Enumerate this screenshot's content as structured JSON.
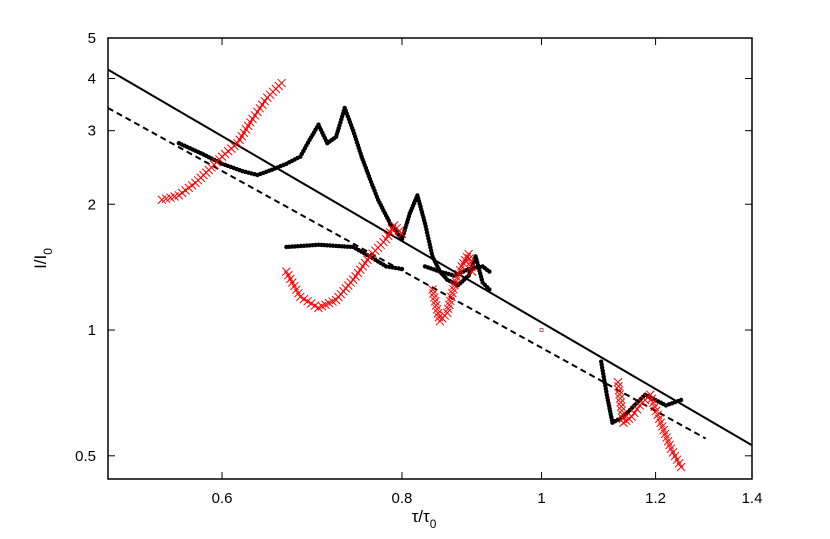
{
  "chart_data": {
    "type": "scatter",
    "x_scale": "log",
    "y_scale": "log",
    "xlim": [
      0.5,
      1.4
    ],
    "ylim": [
      0.44,
      5
    ],
    "xlabel": {
      "main": "τ/τ",
      "sub": "0"
    },
    "ylabel": {
      "main": "I/I",
      "sub": "0"
    },
    "x_ticks": [
      {
        "value": 0.6,
        "label": "0.6"
      },
      {
        "value": 0.8,
        "label": "0.8"
      },
      {
        "value": 1.0,
        "label": "1"
      },
      {
        "value": 1.2,
        "label": "1.2"
      },
      {
        "value": 1.4,
        "label": "1.4"
      }
    ],
    "y_ticks": [
      {
        "value": 0.5,
        "label": "0.5"
      },
      {
        "value": 1,
        "label": "1"
      },
      {
        "value": 2,
        "label": "2"
      },
      {
        "value": 3,
        "label": "3"
      },
      {
        "value": 4,
        "label": "4"
      },
      {
        "value": 5,
        "label": "5"
      }
    ],
    "grid": false,
    "lines": [
      {
        "style": "solid",
        "color": "#000000",
        "points": [
          [
            0.5,
            4.2
          ],
          [
            1.4,
            0.53
          ]
        ]
      },
      {
        "style": "dashed",
        "color": "#000000",
        "points": [
          [
            0.5,
            3.4
          ],
          [
            1.3,
            0.55
          ]
        ]
      }
    ],
    "series": [
      {
        "marker": "dot",
        "color": "#000000",
        "paths": [
          [
            [
              0.56,
              2.8
            ],
            [
              0.58,
              2.65
            ],
            [
              0.6,
              2.5
            ],
            [
              0.62,
              2.4
            ],
            [
              0.635,
              2.35
            ],
            [
              0.65,
              2.42
            ],
            [
              0.665,
              2.5
            ],
            [
              0.68,
              2.6
            ],
            [
              0.69,
              2.85
            ],
            [
              0.7,
              3.1
            ],
            [
              0.71,
              2.8
            ],
            [
              0.72,
              2.9
            ],
            [
              0.73,
              3.4
            ],
            [
              0.74,
              3.0
            ],
            [
              0.75,
              2.6
            ],
            [
              0.76,
              2.3
            ],
            [
              0.77,
              2.05
            ],
            [
              0.785,
              1.8
            ],
            [
              0.8,
              1.65
            ],
            [
              0.81,
              1.9
            ],
            [
              0.82,
              2.1
            ],
            [
              0.83,
              1.8
            ],
            [
              0.84,
              1.5
            ],
            [
              0.85,
              1.38
            ],
            [
              0.86,
              1.32
            ],
            [
              0.875,
              1.28
            ],
            [
              0.89,
              1.35
            ],
            [
              0.9,
              1.5
            ],
            [
              0.91,
              1.3
            ],
            [
              0.92,
              1.25
            ]
          ],
          [
            [
              0.665,
              1.58
            ],
            [
              0.7,
              1.6
            ],
            [
              0.74,
              1.58
            ],
            [
              0.76,
              1.5
            ],
            [
              0.78,
              1.42
            ],
            [
              0.8,
              1.4
            ]
          ],
          [
            [
              0.83,
              1.42
            ],
            [
              0.85,
              1.38
            ],
            [
              0.87,
              1.35
            ],
            [
              0.89,
              1.4
            ],
            [
              0.91,
              1.42
            ],
            [
              0.92,
              1.38
            ]
          ],
          [
            [
              1.1,
              0.84
            ],
            [
              1.11,
              0.7
            ],
            [
              1.12,
              0.6
            ],
            [
              1.14,
              0.62
            ],
            [
              1.16,
              0.66
            ],
            [
              1.18,
              0.7
            ],
            [
              1.2,
              0.68
            ],
            [
              1.22,
              0.66
            ],
            [
              1.25,
              0.68
            ]
          ]
        ]
      },
      {
        "marker": "x",
        "color": "#ff0000",
        "paths": [
          [
            [
              0.545,
              2.05
            ],
            [
              0.56,
              2.1
            ],
            [
              0.575,
              2.25
            ],
            [
              0.59,
              2.45
            ],
            [
              0.6,
              2.6
            ],
            [
              0.615,
              2.8
            ],
            [
              0.63,
              3.2
            ],
            [
              0.645,
              3.6
            ],
            [
              0.66,
              3.9
            ]
          ],
          [
            [
              0.665,
              1.38
            ],
            [
              0.68,
              1.2
            ],
            [
              0.7,
              1.13
            ],
            [
              0.72,
              1.18
            ],
            [
              0.74,
              1.32
            ],
            [
              0.76,
              1.5
            ],
            [
              0.78,
              1.65
            ],
            [
              0.79,
              1.78
            ],
            [
              0.8,
              1.7
            ]
          ],
          [
            [
              0.84,
              1.25
            ],
            [
              0.85,
              1.05
            ],
            [
              0.86,
              1.1
            ],
            [
              0.87,
              1.28
            ],
            [
              0.88,
              1.42
            ],
            [
              0.89,
              1.52
            ],
            [
              0.895,
              1.38
            ]
          ],
          [
            [
              1.13,
              0.75
            ],
            [
              1.14,
              0.6
            ],
            [
              1.155,
              0.62
            ],
            [
              1.17,
              0.66
            ],
            [
              1.19,
              0.7
            ],
            [
              1.21,
              0.6
            ],
            [
              1.23,
              0.52
            ],
            [
              1.25,
              0.47
            ]
          ]
        ]
      }
    ],
    "annotations": [
      {
        "x": 1.0,
        "y": 1.0,
        "marker": "small-square"
      }
    ]
  }
}
